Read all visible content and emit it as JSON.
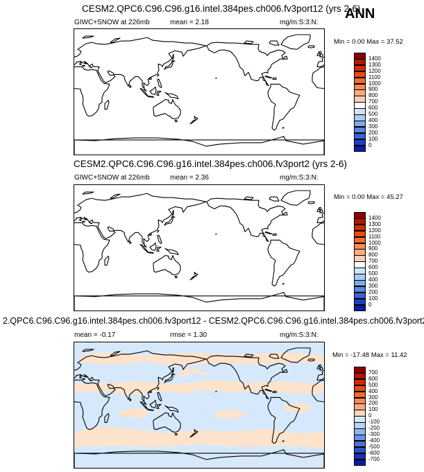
{
  "season_label": "ANN",
  "panels": [
    {
      "title": "CESM2.QPC6.C96.C96.g16.intel.384pes.ch006.fv3port12 (yrs 2-6)",
      "left_label": "GIWC+SNOW at 226mb",
      "mean_label": "mean =   2.18",
      "units": "mg/m:S:3:N:",
      "minmax": "Min =   0.00 Max =  37.52",
      "colorbar_levels": [
        "1400",
        "1300",
        "1200",
        "1100",
        "1000",
        "900",
        "800",
        "700",
        "600",
        "500",
        "400",
        "300",
        "200",
        "100",
        "0"
      ],
      "colorbar_colors": [
        "#8b0000",
        "#b01800",
        "#d42a00",
        "#ea4a10",
        "#f26a30",
        "#f78a55",
        "#fbaa80",
        "#fdd0b4",
        "#ffffff",
        "#cfe3fa",
        "#a8c9f3",
        "#80aaec",
        "#5a88e0",
        "#3a64d4",
        "#1f3fc4",
        "#0a1fa8"
      ],
      "field": "none"
    },
    {
      "title": "CESM2.QPC6.C96.C96.g16.intel.384pes.ch006.fv3port2 (yrs 2-6)",
      "left_label": "GIWC+SNOW at 226mb",
      "mean_label": "mean =   2.36",
      "units": "mg/m:S:3:N:",
      "minmax": "Min =   0.00 Max =  45.27",
      "colorbar_levels": [
        "1400",
        "1300",
        "1200",
        "1100",
        "1000",
        "900",
        "800",
        "700",
        "600",
        "500",
        "400",
        "300",
        "200",
        "100",
        "0"
      ],
      "colorbar_colors": [
        "#8b0000",
        "#b01800",
        "#d42a00",
        "#ea4a10",
        "#f26a30",
        "#f78a55",
        "#fbaa80",
        "#fdd0b4",
        "#ffffff",
        "#cfe3fa",
        "#a8c9f3",
        "#80aaec",
        "#5a88e0",
        "#3a64d4",
        "#1f3fc4",
        "#0a1fa8"
      ],
      "field": "none"
    },
    {
      "title": "2.QPC6.C96.C96.g16.intel.384pes.ch006.fv3port12 - CESM2.QPC6.C96.C96.g16.intel.384pes.ch006.fv3port2",
      "left_label": "mean =  -0.17",
      "mean_label": "rmse =   1.30",
      "units": "mg/m:S:3:N:",
      "minmax": "Min = -17.48 Max =  11.42",
      "colorbar_levels": [
        "700",
        "600",
        "500",
        "400",
        "300",
        "200",
        "100",
        "0",
        "-100",
        "-200",
        "-300",
        "-400",
        "-500",
        "-600",
        "-700"
      ],
      "colorbar_colors": [
        "#8b0000",
        "#b01800",
        "#d42a00",
        "#ea4a10",
        "#f26a30",
        "#f78a55",
        "#fbaa80",
        "#fdd6bc",
        "#d6e8fb",
        "#b7d3f6",
        "#90b6ef",
        "#6a94e6",
        "#4a72da",
        "#2e50ca",
        "#1733b6",
        "#0a1fa0"
      ],
      "field": "difference",
      "field_colors": {
        "positive": "#fde3cc",
        "negative": "#d6e8fb"
      }
    }
  ]
}
